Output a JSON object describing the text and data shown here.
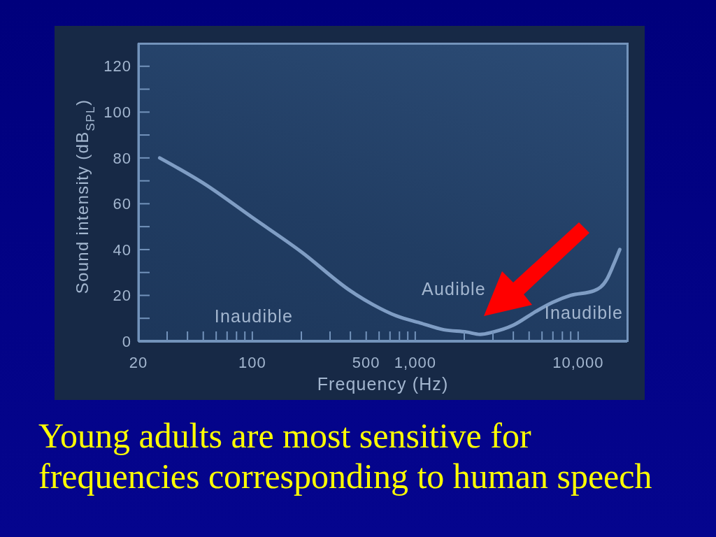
{
  "chart_data": {
    "type": "line",
    "xlabel": "Frequency (Hz)",
    "ylabel": "Sound intensity (dB$_{SPL}$)",
    "x": [
      27,
      50,
      100,
      200,
      400,
      550,
      770,
      1070,
      1500,
      2070,
      2500,
      3000,
      4000,
      5500,
      7000,
      9000,
      12500,
      15000,
      16400,
      18000
    ],
    "values": [
      80,
      69,
      54,
      39,
      22,
      16,
      11,
      8,
      5,
      4,
      3,
      4,
      7,
      13,
      17,
      20,
      22,
      27,
      33,
      40
    ],
    "color": "#7f9dc4",
    "line_style": "solid",
    "log": "x",
    "xlim": [
      20,
      20000
    ],
    "xticks": [
      20,
      {
        "value": 30,
        "label": null
      },
      {
        "value": 40,
        "label": null
      },
      {
        "value": 50,
        "label": null
      },
      {
        "value": 60,
        "label": null
      },
      {
        "value": 70,
        "label": null
      },
      {
        "value": 80,
        "label": null
      },
      {
        "value": 90,
        "label": null
      },
      100,
      {
        "value": 200,
        "label": null
      },
      {
        "value": 300,
        "label": null
      },
      {
        "value": 400,
        "label": null
      },
      500,
      {
        "value": 600,
        "label": null
      },
      {
        "value": 700,
        "label": null
      },
      {
        "value": 800,
        "label": null
      },
      {
        "value": 900,
        "label": null
      },
      {
        "value": 1000,
        "label": "1,000"
      },
      {
        "value": 2000,
        "label": null
      },
      {
        "value": 3000,
        "label": null
      },
      {
        "value": 4000,
        "label": null
      },
      {
        "value": 5000,
        "label": null
      },
      {
        "value": 6000,
        "label": null
      },
      {
        "value": 7000,
        "label": null
      },
      {
        "value": 8000,
        "label": null
      },
      {
        "value": 9000,
        "label": null
      },
      {
        "value": 10000,
        "label": "10,000"
      }
    ],
    "ylim": [
      0,
      130
    ],
    "yticks": [
      0,
      {
        "value": 10,
        "label": null
      },
      20,
      {
        "value": 30,
        "label": null
      },
      40,
      {
        "value": 50,
        "label": null
      },
      60,
      {
        "value": 70,
        "label": null
      },
      80,
      {
        "value": 90,
        "label": null
      },
      100,
      {
        "value": 110,
        "label": null
      },
      120
    ],
    "annotations": [
      "Inaudible",
      "Audible",
      "Inaudible",
      "Young adults are most sensitive for frequencies corresponding to human speech"
    ]
  }
}
